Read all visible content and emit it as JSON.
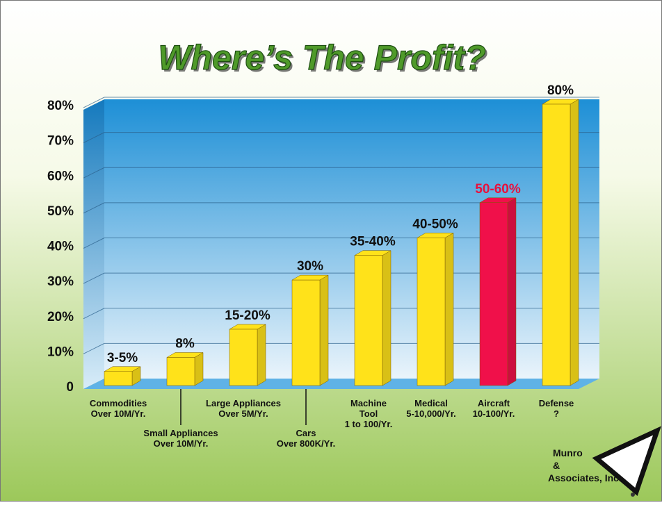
{
  "chart_data": {
    "type": "bar3d",
    "title": "Where’s The Profit?",
    "categories": [
      "Commodities\nOver 10M/Yr.",
      "Small Appliances\nOver 10M/Yr.",
      "Large Appliances\nOver 5M/Yr.",
      "Cars\nOver 800K/Yr.",
      "Machine\nTool\n1 to 100/Yr.",
      "Medical\n5-10,000/Yr.",
      "Aircraft\n10-100/Yr.",
      "Defense\n?"
    ],
    "values": [
      4,
      8,
      16,
      30,
      37,
      42,
      52,
      80
    ],
    "value_labels": [
      "3-5%",
      "8%",
      "15-20%",
      "30%",
      "35-40%",
      "40-50%",
      "50-60%",
      "80%"
    ],
    "colors": [
      "#ffe21a",
      "#ffe21a",
      "#ffe21a",
      "#ffe21a",
      "#ffe21a",
      "#ffe21a",
      "#f0104a",
      "#ffe21a"
    ],
    "label_colors": [
      "#111111",
      "#111111",
      "#111111",
      "#111111",
      "#111111",
      "#111111",
      "#e8103c",
      "#111111"
    ],
    "ylim": [
      0,
      80
    ],
    "yticks": [
      {
        "value": 0,
        "label": "0"
      },
      {
        "value": 10,
        "label": "10%"
      },
      {
        "value": 20,
        "label": "20%"
      },
      {
        "value": 30,
        "label": "30%"
      },
      {
        "value": 40,
        "label": "40%"
      },
      {
        "value": 50,
        "label": "50%"
      },
      {
        "value": 60,
        "label": "60%"
      },
      {
        "value": 70,
        "label": "70%"
      },
      {
        "value": 80,
        "label": "80%"
      }
    ],
    "grid": true,
    "logo": [
      "Munro",
      "&",
      "Associates, Inc."
    ]
  }
}
